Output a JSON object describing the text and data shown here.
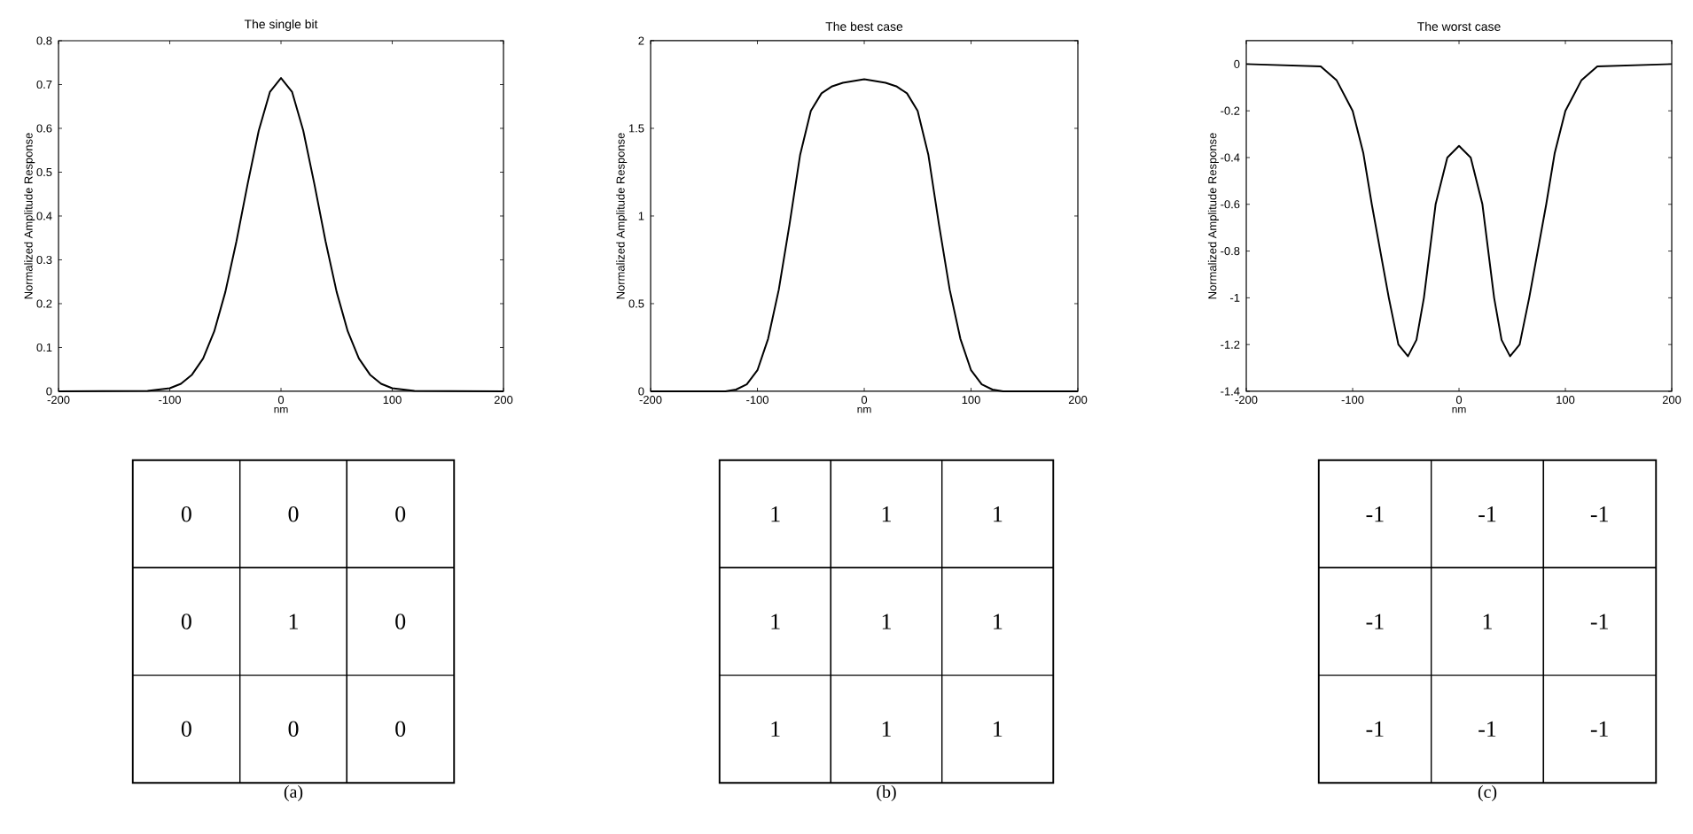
{
  "chart_data": [
    {
      "type": "line",
      "title": "The single bit",
      "xlabel": "nm",
      "ylabel": "Normalized Amplitude Response",
      "xlim": [
        -200,
        200
      ],
      "ylim": [
        0,
        0.8
      ],
      "xticks": [
        -200,
        -100,
        0,
        100,
        200
      ],
      "yticks": [
        0,
        0.1,
        0.2,
        0.3,
        0.4,
        0.5,
        0.6,
        0.7,
        0.8
      ],
      "color": "#000000",
      "x": [
        -200,
        -120,
        -100,
        -90,
        -80,
        -70,
        -60,
        -50,
        -40,
        -30,
        -20,
        -10,
        0,
        10,
        20,
        30,
        40,
        50,
        60,
        70,
        80,
        90,
        100,
        120,
        200
      ],
      "values": [
        0,
        0.001,
        0.007,
        0.017,
        0.038,
        0.075,
        0.137,
        0.227,
        0.343,
        0.473,
        0.595,
        0.683,
        0.715,
        0.683,
        0.595,
        0.473,
        0.343,
        0.227,
        0.137,
        0.075,
        0.038,
        0.017,
        0.007,
        0.001,
        0
      ]
    },
    {
      "type": "line",
      "title": "The best case",
      "xlabel": "nm",
      "ylabel": "Normalized Amplitude Response",
      "xlim": [
        -200,
        200
      ],
      "ylim": [
        0,
        2
      ],
      "xticks": [
        -200,
        -100,
        0,
        100,
        200
      ],
      "yticks": [
        0,
        0.5,
        1,
        1.5,
        2
      ],
      "color": "#000000",
      "x": [
        -200,
        -130,
        -120,
        -110,
        -100,
        -90,
        -80,
        -70,
        -60,
        -50,
        -40,
        -30,
        -20,
        0,
        20,
        30,
        40,
        50,
        60,
        70,
        80,
        90,
        100,
        110,
        120,
        130,
        200
      ],
      "values": [
        0,
        0,
        0.01,
        0.04,
        0.12,
        0.3,
        0.58,
        0.95,
        1.35,
        1.6,
        1.7,
        1.74,
        1.76,
        1.78,
        1.76,
        1.74,
        1.7,
        1.6,
        1.35,
        0.95,
        0.58,
        0.3,
        0.12,
        0.04,
        0.01,
        0,
        0
      ]
    },
    {
      "type": "line",
      "title": "The worst case",
      "xlabel": "nm",
      "ylabel": "Normalized Amplitude Response",
      "xlim": [
        -200,
        200
      ],
      "ylim": [
        -1.4,
        0.1
      ],
      "xticks": [
        -200,
        -100,
        0,
        100,
        200
      ],
      "yticks": [
        -1.4,
        -1.2,
        -1,
        -0.8,
        -0.6,
        -0.4,
        -0.2,
        0
      ],
      "color": "#000000",
      "x": [
        -200,
        -130,
        -115,
        -100,
        -90,
        -82,
        -74,
        -66,
        -57,
        -48,
        -40,
        -33,
        -22,
        -11,
        0,
        11,
        22,
        33,
        40,
        48,
        57,
        66,
        74,
        82,
        90,
        100,
        115,
        130,
        200
      ],
      "values": [
        0,
        -0.01,
        -0.07,
        -0.2,
        -0.38,
        -0.6,
        -0.8,
        -1.0,
        -1.2,
        -1.25,
        -1.18,
        -1.0,
        -0.6,
        -0.4,
        -0.35,
        -0.4,
        -0.6,
        -1.0,
        -1.18,
        -1.25,
        -1.2,
        -1.0,
        -0.8,
        -0.6,
        -0.38,
        -0.2,
        -0.07,
        -0.01,
        0
      ]
    },
    {
      "type": "other",
      "xlabel": "(a)",
      "cell_labels": [
        [
          "0",
          "0",
          "0"
        ],
        [
          "0",
          "1",
          "0"
        ],
        [
          "0",
          "0",
          "0"
        ]
      ]
    },
    {
      "type": "other",
      "xlabel": "(b)",
      "cell_labels": [
        [
          "1",
          "1",
          "1"
        ],
        [
          "1",
          "1",
          "1"
        ],
        [
          "1",
          "1",
          "1"
        ]
      ]
    },
    {
      "type": "other",
      "xlabel": "(c)",
      "cell_labels": [
        [
          "-1",
          "-1",
          "-1"
        ],
        [
          "-1",
          "1",
          "-1"
        ],
        [
          "-1",
          "-1",
          "-1"
        ]
      ]
    }
  ]
}
